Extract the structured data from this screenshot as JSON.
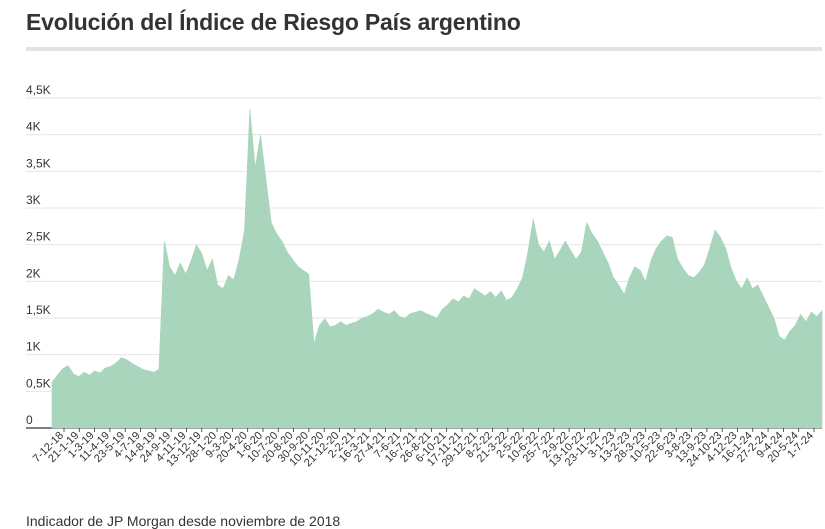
{
  "chart_data": {
    "type": "area",
    "title": "Evolución del Índice de Riesgo País argentino",
    "subtitle": "Indicador de JP Morgan desde noviembre de 2018",
    "xlabel": "",
    "ylabel": "",
    "ylim": [
      0,
      4500
    ],
    "grid": true,
    "legend": "none",
    "fill_color": "#a8d5bb",
    "y_ticks": [
      {
        "value": 0,
        "label": "0"
      },
      {
        "value": 500,
        "label": "0,5K"
      },
      {
        "value": 1000,
        "label": "1K"
      },
      {
        "value": 1500,
        "label": "1,5K"
      },
      {
        "value": 2000,
        "label": "2K"
      },
      {
        "value": 2500,
        "label": "2,5K"
      },
      {
        "value": 3000,
        "label": "3K"
      },
      {
        "value": 3500,
        "label": "3,5K"
      },
      {
        "value": 4000,
        "label": "4K"
      },
      {
        "value": 4500,
        "label": "4,5K"
      }
    ],
    "x_tick_labels": [
      "7-12-18",
      "21-1-19",
      "1-3-19",
      "11-4-19",
      "23-5-19",
      "4-7-19",
      "14-8-19",
      "24-9-19",
      "4-11-19",
      "13-12-19",
      "28-1-20",
      "9-3-20",
      "20-4-20",
      "1-6-20",
      "10-7-20",
      "20-8-20",
      "30-9-20",
      "10-11-20",
      "21-12-20",
      "2-2-21",
      "16-3-21",
      "27-4-21",
      "7-6-21",
      "16-7-21",
      "26-8-21",
      "6-10-21",
      "17-11-21",
      "29-12-21",
      "8-2-22",
      "21-3-22",
      "2-5-22",
      "10-6-22",
      "25-7-22",
      "2-9-22",
      "13-10-22",
      "23-11-22",
      "3-1-23",
      "13-2-23",
      "28-3-23",
      "10-5-23",
      "22-6-23",
      "3-8-23",
      "13-9-23",
      "24-10-23",
      "4-12-23",
      "16-1-24",
      "27-2-24",
      "9-4-24",
      "20-5-24",
      "1-7-24"
    ],
    "series": [
      {
        "values": [
          620,
          720,
          810,
          850,
          740,
          700,
          760,
          720,
          780,
          750,
          820,
          840,
          890,
          960,
          930,
          880,
          840,
          800,
          780,
          760,
          800,
          2550,
          2200,
          2080,
          2250,
          2100,
          2280,
          2500,
          2380,
          2150,
          2300,
          1950,
          1900,
          2080,
          2020,
          2300,
          2700,
          4350,
          3550,
          4000,
          3400,
          2800,
          2650,
          2550,
          2400,
          2300,
          2200,
          2150,
          2100,
          1150,
          1400,
          1490,
          1380,
          1400,
          1450,
          1400,
          1430,
          1450,
          1500,
          1520,
          1560,
          1620,
          1580,
          1550,
          1600,
          1520,
          1500,
          1560,
          1580,
          1600,
          1560,
          1530,
          1500,
          1620,
          1680,
          1760,
          1720,
          1800,
          1760,
          1900,
          1850,
          1800,
          1860,
          1780,
          1870,
          1740,
          1780,
          1900,
          2050,
          2400,
          2850,
          2500,
          2400,
          2550,
          2300,
          2420,
          2550,
          2420,
          2300,
          2400,
          2800,
          2650,
          2550,
          2400,
          2250,
          2050,
          1950,
          1820,
          2050,
          2200,
          2150,
          2000,
          2280,
          2450,
          2550,
          2620,
          2600,
          2300,
          2180,
          2080,
          2050,
          2120,
          2220,
          2450,
          2700,
          2600,
          2450,
          2180,
          2000,
          1900,
          2050,
          1900,
          1950,
          1800,
          1650,
          1500,
          1250,
          1200,
          1320,
          1400,
          1550,
          1450,
          1580,
          1520,
          1600
        ]
      }
    ]
  }
}
